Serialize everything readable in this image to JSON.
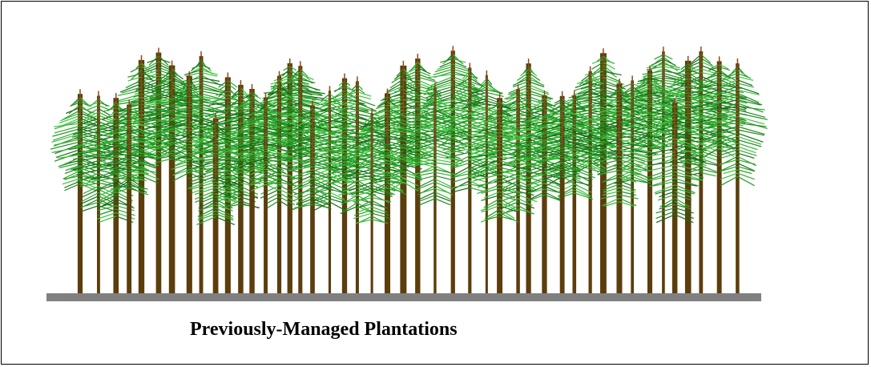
{
  "caption": "Previously-Managed Plantations"
}
